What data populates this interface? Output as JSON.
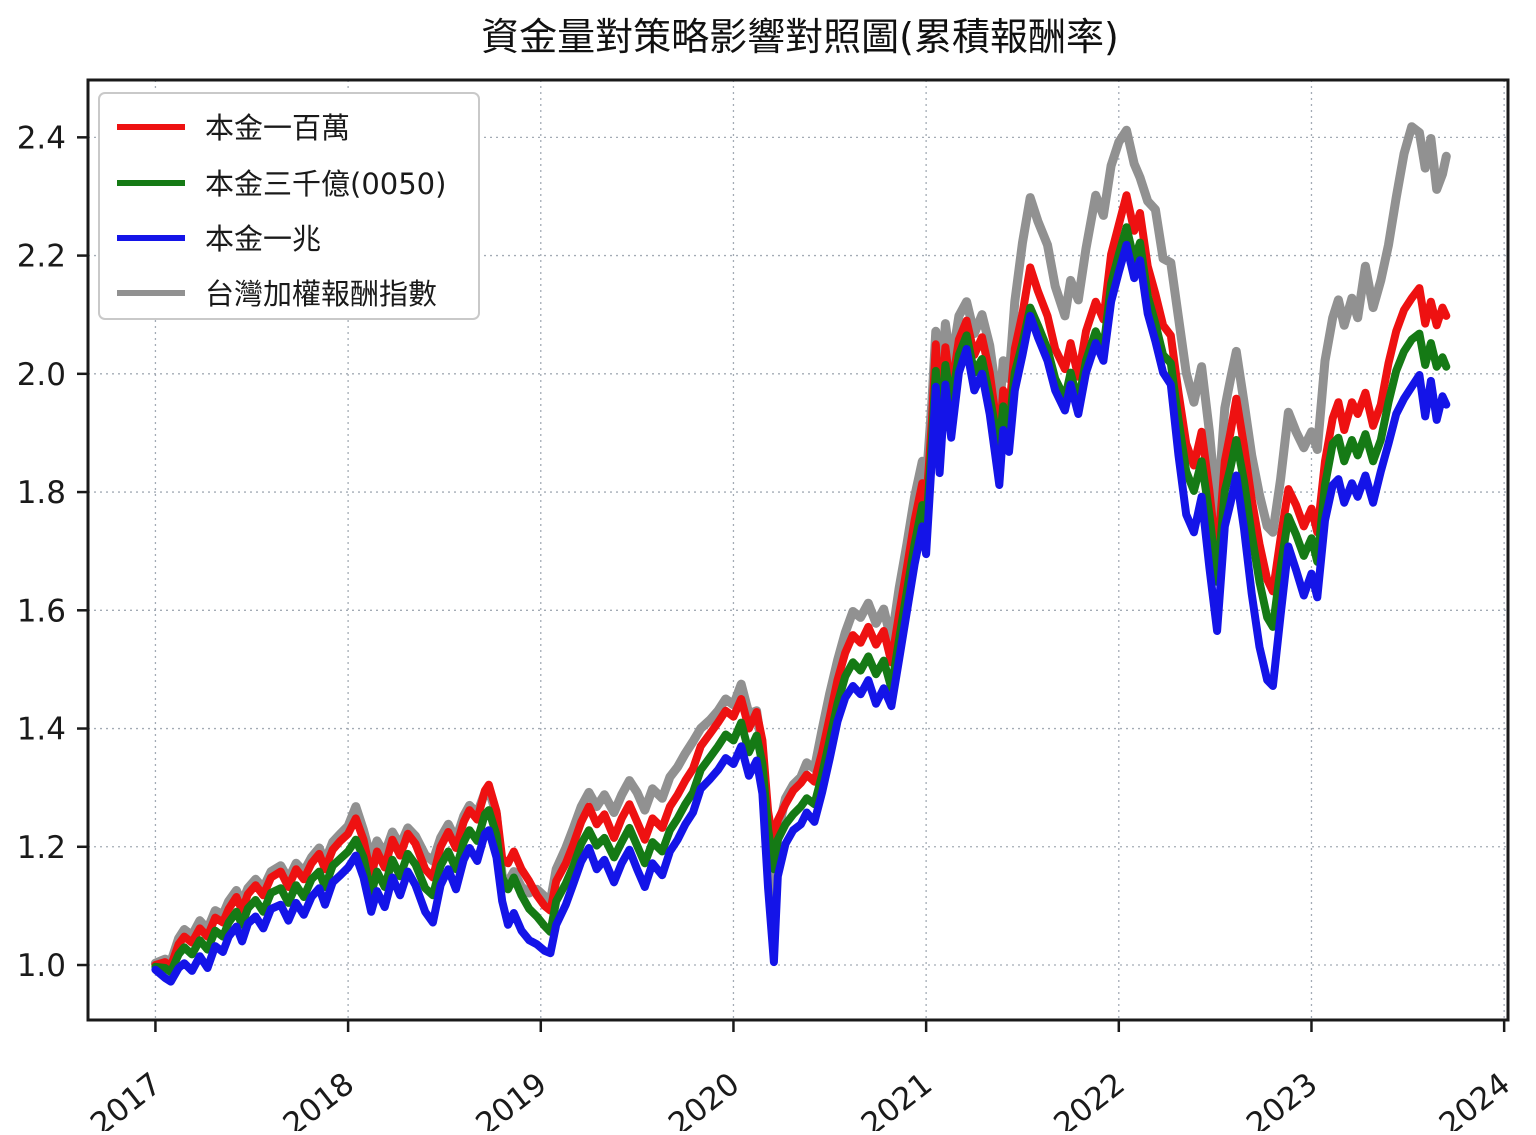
{
  "chart_data": {
    "type": "line",
    "title": "資金量對策略影響對照圖(累積報酬率)",
    "xlabel": "",
    "ylabel": "",
    "grid": true,
    "grid_color": "#9aa2ad",
    "background": "#ffffff",
    "legend_position": "upper-left",
    "x_ticks": [
      2017,
      2018,
      2019,
      2020,
      2021,
      2022,
      2023,
      2024
    ],
    "y_ticks": [
      1.0,
      1.2,
      1.4,
      1.6,
      1.8,
      2.0,
      2.2,
      2.4
    ],
    "xlim": [
      2016.65,
      2024.02
    ],
    "ylim": [
      0.907,
      2.497
    ],
    "x": [
      2017.0,
      2017.05,
      2017.08,
      2017.12,
      2017.15,
      2017.19,
      2017.23,
      2017.27,
      2017.31,
      2017.35,
      2017.38,
      2017.42,
      2017.45,
      2017.48,
      2017.52,
      2017.56,
      2017.6,
      2017.65,
      2017.69,
      2017.73,
      2017.77,
      2017.81,
      2017.85,
      2017.88,
      2017.92,
      2017.96,
      2018.0,
      2018.04,
      2018.08,
      2018.12,
      2018.15,
      2018.19,
      2018.23,
      2018.27,
      2018.31,
      2018.35,
      2018.4,
      2018.44,
      2018.48,
      2018.52,
      2018.56,
      2018.6,
      2018.63,
      2018.67,
      2018.71,
      2018.73,
      2018.77,
      2018.8,
      2018.83,
      2018.86,
      2018.9,
      2018.94,
      2018.98,
      2019.02,
      2019.05,
      2019.08,
      2019.13,
      2019.17,
      2019.21,
      2019.25,
      2019.29,
      2019.33,
      2019.38,
      2019.42,
      2019.46,
      2019.5,
      2019.54,
      2019.58,
      2019.63,
      2019.67,
      2019.71,
      2019.75,
      2019.79,
      2019.83,
      2019.88,
      2019.92,
      2019.96,
      2020.0,
      2020.04,
      2020.08,
      2020.12,
      2020.15,
      2020.18,
      2020.21,
      2020.23,
      2020.27,
      2020.31,
      2020.35,
      2020.38,
      2020.42,
      2020.46,
      2020.5,
      2020.54,
      2020.58,
      2020.62,
      2020.66,
      2020.7,
      2020.74,
      2020.78,
      2020.82,
      2020.86,
      2020.9,
      2020.94,
      2020.98,
      2021.0,
      2021.03,
      2021.05,
      2021.07,
      2021.1,
      2021.13,
      2021.17,
      2021.21,
      2021.25,
      2021.29,
      2021.33,
      2021.38,
      2021.4,
      2021.43,
      2021.46,
      2021.5,
      2021.54,
      2021.58,
      2021.63,
      2021.67,
      2021.72,
      2021.75,
      2021.79,
      2021.83,
      2021.88,
      2021.92,
      2021.96,
      2022.0,
      2022.04,
      2022.08,
      2022.11,
      2022.15,
      2022.19,
      2022.23,
      2022.27,
      2022.31,
      2022.35,
      2022.39,
      2022.43,
      2022.47,
      2022.51,
      2022.55,
      2022.58,
      2022.61,
      2022.65,
      2022.69,
      2022.73,
      2022.77,
      2022.8,
      2022.84,
      2022.88,
      2022.92,
      2022.96,
      2023.0,
      2023.03,
      2023.07,
      2023.11,
      2023.14,
      2023.17,
      2023.21,
      2023.24,
      2023.28,
      2023.32,
      2023.36,
      2023.4,
      2023.44,
      2023.48,
      2023.52,
      2023.56,
      2023.59,
      2023.62,
      2023.65,
      2023.68,
      2023.7
    ],
    "series": [
      {
        "name": "本金一百萬",
        "color": "#ee1111",
        "stroke_width": 8,
        "z": 1,
        "values": [
          1.0,
          1.005,
          0.998,
          1.035,
          1.048,
          1.038,
          1.062,
          1.048,
          1.08,
          1.072,
          1.095,
          1.115,
          1.092,
          1.12,
          1.135,
          1.118,
          1.148,
          1.158,
          1.132,
          1.162,
          1.145,
          1.172,
          1.188,
          1.162,
          1.195,
          1.21,
          1.222,
          1.248,
          1.212,
          1.15,
          1.192,
          1.165,
          1.212,
          1.185,
          1.222,
          1.205,
          1.162,
          1.148,
          1.2,
          1.225,
          1.198,
          1.242,
          1.262,
          1.246,
          1.295,
          1.305,
          1.26,
          1.18,
          1.172,
          1.192,
          1.162,
          1.142,
          1.118,
          1.1,
          1.092,
          1.142,
          1.172,
          1.205,
          1.242,
          1.268,
          1.238,
          1.255,
          1.215,
          1.248,
          1.272,
          1.242,
          1.212,
          1.248,
          1.232,
          1.268,
          1.288,
          1.312,
          1.332,
          1.37,
          1.392,
          1.41,
          1.43,
          1.42,
          1.45,
          1.4,
          1.428,
          1.38,
          1.26,
          1.2,
          1.245,
          1.272,
          1.295,
          1.308,
          1.322,
          1.31,
          1.36,
          1.42,
          1.482,
          1.528,
          1.558,
          1.545,
          1.572,
          1.542,
          1.565,
          1.512,
          1.595,
          1.672,
          1.752,
          1.815,
          1.775,
          1.92,
          2.05,
          1.925,
          2.045,
          1.968,
          2.058,
          2.09,
          2.032,
          2.062,
          2.002,
          1.882,
          1.972,
          1.935,
          2.042,
          2.102,
          2.18,
          2.14,
          2.098,
          2.042,
          2.008,
          2.052,
          1.995,
          2.072,
          2.122,
          2.092,
          2.202,
          2.252,
          2.302,
          2.242,
          2.272,
          2.182,
          2.135,
          2.082,
          2.065,
          1.968,
          1.882,
          1.845,
          1.902,
          1.802,
          1.682,
          1.852,
          1.902,
          1.958,
          1.878,
          1.788,
          1.712,
          1.652,
          1.632,
          1.722,
          1.805,
          1.778,
          1.742,
          1.772,
          1.732,
          1.852,
          1.925,
          1.952,
          1.905,
          1.952,
          1.932,
          1.968,
          1.912,
          1.948,
          2.018,
          2.072,
          2.108,
          2.128,
          2.145,
          2.085,
          2.122,
          2.082,
          2.112,
          2.098
        ]
      },
      {
        "name": "本金三千億(0050)",
        "color": "#157a15",
        "stroke_width": 8,
        "z": 2,
        "values": [
          0.997,
          0.995,
          0.988,
          1.018,
          1.03,
          1.018,
          1.042,
          1.026,
          1.058,
          1.048,
          1.072,
          1.09,
          1.068,
          1.096,
          1.11,
          1.09,
          1.122,
          1.13,
          1.105,
          1.135,
          1.115,
          1.145,
          1.158,
          1.132,
          1.168,
          1.18,
          1.192,
          1.212,
          1.182,
          1.12,
          1.158,
          1.132,
          1.178,
          1.15,
          1.188,
          1.17,
          1.13,
          1.118,
          1.168,
          1.192,
          1.162,
          1.208,
          1.228,
          1.21,
          1.255,
          1.262,
          1.22,
          1.148,
          1.128,
          1.148,
          1.118,
          1.095,
          1.082,
          1.066,
          1.056,
          1.108,
          1.138,
          1.168,
          1.205,
          1.228,
          1.202,
          1.215,
          1.182,
          1.208,
          1.232,
          1.202,
          1.172,
          1.208,
          1.192,
          1.228,
          1.248,
          1.272,
          1.292,
          1.33,
          1.352,
          1.37,
          1.39,
          1.38,
          1.41,
          1.36,
          1.388,
          1.34,
          1.23,
          1.162,
          1.212,
          1.238,
          1.255,
          1.268,
          1.282,
          1.272,
          1.322,
          1.382,
          1.442,
          1.488,
          1.512,
          1.498,
          1.522,
          1.492,
          1.515,
          1.468,
          1.552,
          1.632,
          1.712,
          1.778,
          1.738,
          1.888,
          2.005,
          1.892,
          2.015,
          1.948,
          2.032,
          2.065,
          2.002,
          2.025,
          1.962,
          1.872,
          1.945,
          1.905,
          2.002,
          2.052,
          2.112,
          2.082,
          2.042,
          1.992,
          1.958,
          2.002,
          1.952,
          2.022,
          2.072,
          2.042,
          2.152,
          2.202,
          2.248,
          2.192,
          2.222,
          2.132,
          2.085,
          2.032,
          2.018,
          1.922,
          1.835,
          1.802,
          1.852,
          1.762,
          1.648,
          1.802,
          1.842,
          1.888,
          1.818,
          1.728,
          1.648,
          1.588,
          1.572,
          1.672,
          1.758,
          1.728,
          1.692,
          1.722,
          1.682,
          1.812,
          1.882,
          1.892,
          1.852,
          1.888,
          1.862,
          1.898,
          1.852,
          1.888,
          1.952,
          2.005,
          2.038,
          2.058,
          2.068,
          2.015,
          2.052,
          2.012,
          2.028,
          2.012
        ]
      },
      {
        "name": "本金一兆",
        "color": "#1414e8",
        "stroke_width": 8,
        "z": 3,
        "values": [
          0.992,
          0.978,
          0.972,
          0.995,
          1.003,
          0.99,
          1.015,
          0.995,
          1.032,
          1.022,
          1.048,
          1.065,
          1.04,
          1.07,
          1.082,
          1.062,
          1.095,
          1.102,
          1.075,
          1.105,
          1.085,
          1.115,
          1.13,
          1.102,
          1.14,
          1.152,
          1.165,
          1.185,
          1.148,
          1.09,
          1.125,
          1.098,
          1.148,
          1.118,
          1.158,
          1.135,
          1.09,
          1.072,
          1.135,
          1.162,
          1.128,
          1.178,
          1.198,
          1.176,
          1.222,
          1.228,
          1.182,
          1.108,
          1.068,
          1.088,
          1.058,
          1.042,
          1.035,
          1.024,
          1.02,
          1.068,
          1.102,
          1.138,
          1.175,
          1.198,
          1.162,
          1.178,
          1.14,
          1.172,
          1.195,
          1.162,
          1.132,
          1.172,
          1.152,
          1.192,
          1.212,
          1.238,
          1.258,
          1.298,
          1.315,
          1.33,
          1.35,
          1.34,
          1.37,
          1.32,
          1.346,
          1.29,
          1.13,
          1.005,
          1.15,
          1.205,
          1.228,
          1.238,
          1.258,
          1.242,
          1.292,
          1.35,
          1.412,
          1.452,
          1.472,
          1.458,
          1.482,
          1.442,
          1.468,
          1.438,
          1.518,
          1.598,
          1.678,
          1.742,
          1.695,
          1.858,
          1.978,
          1.832,
          1.982,
          1.892,
          2.002,
          2.042,
          1.972,
          2.0,
          1.932,
          1.812,
          1.905,
          1.868,
          1.972,
          2.032,
          2.098,
          2.062,
          2.022,
          1.972,
          1.938,
          1.982,
          1.932,
          2.002,
          2.052,
          2.022,
          2.122,
          2.172,
          2.218,
          2.162,
          2.192,
          2.102,
          2.055,
          2.002,
          1.982,
          1.862,
          1.762,
          1.732,
          1.792,
          1.672,
          1.565,
          1.742,
          1.782,
          1.828,
          1.738,
          1.628,
          1.538,
          1.482,
          1.472,
          1.592,
          1.708,
          1.668,
          1.625,
          1.662,
          1.622,
          1.752,
          1.812,
          1.822,
          1.782,
          1.815,
          1.792,
          1.828,
          1.782,
          1.835,
          1.882,
          1.932,
          1.958,
          1.978,
          1.998,
          1.928,
          1.988,
          1.922,
          1.962,
          1.948
        ]
      },
      {
        "name": "台灣加權報酬指數",
        "color": "#919191",
        "stroke_width": 9,
        "z": 0,
        "values": [
          1.003,
          1.01,
          1.005,
          1.045,
          1.06,
          1.05,
          1.075,
          1.06,
          1.092,
          1.085,
          1.108,
          1.126,
          1.105,
          1.13,
          1.145,
          1.13,
          1.158,
          1.168,
          1.145,
          1.172,
          1.158,
          1.182,
          1.198,
          1.175,
          1.208,
          1.222,
          1.235,
          1.268,
          1.228,
          1.18,
          1.21,
          1.188,
          1.225,
          1.202,
          1.232,
          1.218,
          1.186,
          1.176,
          1.215,
          1.238,
          1.212,
          1.252,
          1.27,
          1.256,
          1.292,
          1.296,
          1.255,
          1.15,
          1.14,
          1.158,
          1.132,
          1.122,
          1.128,
          1.116,
          1.108,
          1.162,
          1.198,
          1.232,
          1.268,
          1.292,
          1.268,
          1.288,
          1.258,
          1.288,
          1.312,
          1.292,
          1.262,
          1.298,
          1.282,
          1.318,
          1.335,
          1.358,
          1.378,
          1.4,
          1.415,
          1.43,
          1.45,
          1.44,
          1.475,
          1.425,
          1.43,
          1.36,
          1.21,
          1.065,
          1.225,
          1.282,
          1.305,
          1.318,
          1.342,
          1.332,
          1.398,
          1.46,
          1.515,
          1.562,
          1.598,
          1.588,
          1.612,
          1.578,
          1.602,
          1.548,
          1.638,
          1.712,
          1.792,
          1.852,
          1.815,
          1.952,
          2.072,
          1.935,
          2.085,
          2.015,
          2.098,
          2.122,
          2.068,
          2.1,
          2.048,
          1.932,
          2.022,
          1.992,
          2.122,
          2.222,
          2.298,
          2.258,
          2.218,
          2.148,
          2.098,
          2.158,
          2.125,
          2.212,
          2.302,
          2.268,
          2.352,
          2.392,
          2.412,
          2.355,
          2.332,
          2.292,
          2.278,
          2.195,
          2.188,
          2.095,
          2.002,
          1.952,
          2.012,
          1.902,
          1.762,
          1.942,
          1.992,
          2.038,
          1.952,
          1.862,
          1.795,
          1.742,
          1.732,
          1.822,
          1.935,
          1.902,
          1.875,
          1.902,
          1.872,
          2.022,
          2.095,
          2.125,
          2.082,
          2.128,
          2.095,
          2.182,
          2.112,
          2.158,
          2.218,
          2.298,
          2.372,
          2.418,
          2.408,
          2.348,
          2.398,
          2.312,
          2.338,
          2.368
        ]
      }
    ]
  }
}
